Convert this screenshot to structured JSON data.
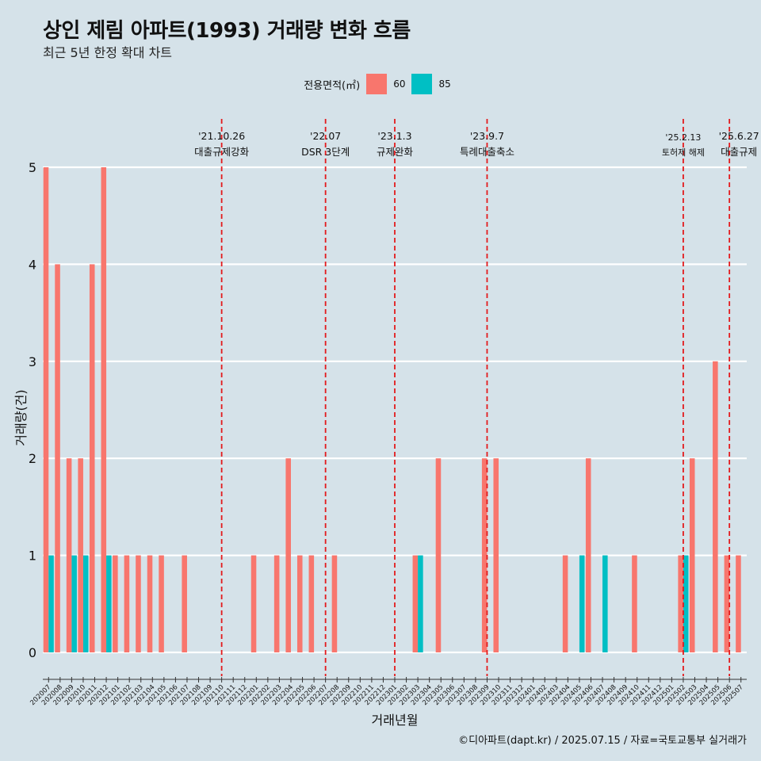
{
  "title": "상인 제림 아파트(1993) 거래량 변화 흐름",
  "subtitle": "최근 5년 한정 확대 차트",
  "legend": {
    "title": "전용면적(㎡)",
    "items": [
      {
        "label": "60",
        "color": "#f8766d"
      },
      {
        "label": "85",
        "color": "#00bfc4"
      }
    ]
  },
  "caption": "©디아파트(dapt.kr) / 2025.07.15 / 자료=국토교통부 실거래가",
  "chart_data": {
    "type": "bar",
    "xlabel": "거래년월",
    "ylabel": "거래량(건)",
    "ylim": [
      0,
      5
    ],
    "yticks": [
      0,
      1,
      2,
      3,
      4,
      5
    ],
    "grid": true,
    "categories": [
      "202007",
      "202008",
      "202009",
      "202010",
      "202011",
      "202012",
      "202101",
      "202102",
      "202103",
      "202104",
      "202105",
      "202106",
      "202107",
      "202108",
      "202109",
      "202110",
      "202111",
      "202112",
      "202201",
      "202202",
      "202203",
      "202204",
      "202205",
      "202206",
      "202207",
      "202208",
      "202209",
      "202210",
      "202211",
      "202212",
      "202301",
      "202302",
      "202303",
      "202304",
      "202305",
      "202306",
      "202307",
      "202308",
      "202309",
      "202310",
      "202311",
      "202312",
      "202401",
      "202402",
      "202403",
      "202404",
      "202405",
      "202406",
      "202407",
      "202408",
      "202409",
      "202410",
      "202411",
      "202412",
      "202501",
      "202502",
      "202503",
      "202504",
      "202505",
      "202506",
      "202507"
    ],
    "series": [
      {
        "name": "60",
        "color": "#f8766d",
        "values": [
          5,
          4,
          2,
          2,
          4,
          5,
          1,
          1,
          1,
          1,
          1,
          0,
          1,
          0,
          0,
          0,
          0,
          0,
          1,
          0,
          1,
          2,
          1,
          1,
          0,
          1,
          0,
          0,
          0,
          0,
          0,
          0,
          1,
          0,
          2,
          0,
          0,
          0,
          2,
          2,
          0,
          0,
          0,
          0,
          0,
          1,
          0,
          2,
          0,
          0,
          0,
          1,
          0,
          0,
          0,
          1,
          2,
          0,
          3,
          1,
          1
        ]
      },
      {
        "name": "85",
        "color": "#00bfc4",
        "values": [
          1,
          0,
          1,
          1,
          0,
          1,
          0,
          0,
          0,
          0,
          0,
          0,
          0,
          0,
          0,
          0,
          0,
          0,
          0,
          0,
          0,
          0,
          0,
          0,
          0,
          0,
          0,
          0,
          0,
          0,
          0,
          0,
          1,
          0,
          0,
          0,
          0,
          0,
          0,
          0,
          0,
          0,
          0,
          0,
          0,
          0,
          1,
          0,
          1,
          0,
          0,
          0,
          0,
          0,
          0,
          1,
          0,
          0,
          0,
          0,
          0
        ]
      }
    ],
    "annotations": [
      {
        "date": "'21.10.26",
        "label": "대출규제강화",
        "x": "202110"
      },
      {
        "date": "'22.07",
        "label": "DSR 3단계",
        "x": "202207"
      },
      {
        "date": "'23.1.3",
        "label": "규제완화",
        "x": "202301"
      },
      {
        "date": "'23.9.7",
        "label": "특례대출축소",
        "x": "202309"
      },
      {
        "date": "'25.2.13",
        "label": "토허제 해제",
        "x": "202502"
      },
      {
        "date": "'25.6.27",
        "label": "대출규제",
        "x": "202506"
      }
    ]
  }
}
